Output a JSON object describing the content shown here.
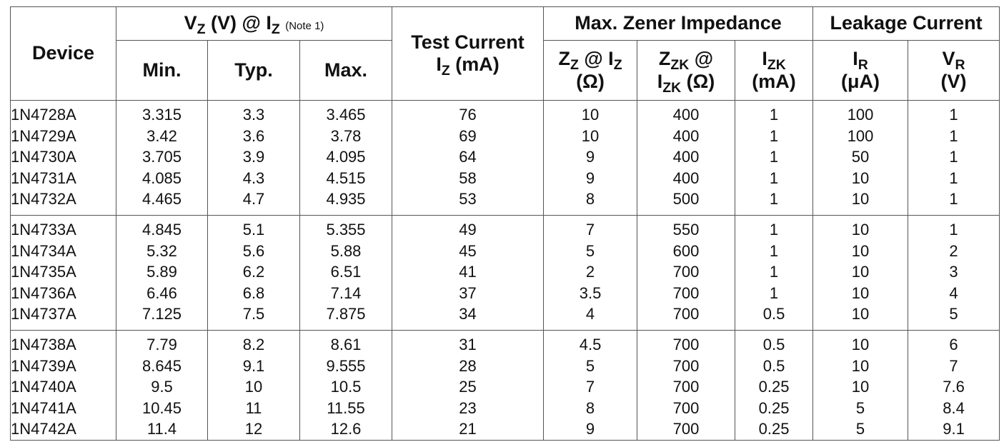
{
  "headers": {
    "device": "Device",
    "vz": {
      "main": "V",
      "sub": "Z",
      "unit": " (V) @ I",
      "sub2": "Z",
      "note": "(Note 1)"
    },
    "vz_min": "Min.",
    "vz_typ": "Typ.",
    "vz_max": "Max.",
    "test_current": {
      "line1": "Test Current",
      "i": "I",
      "sub": "Z",
      "unit": " (mA)"
    },
    "impedance": "Max. Zener Impedance",
    "zz": {
      "z": "Z",
      "sub": "Z",
      "at": " @ I",
      "sub2": "Z",
      "unit": "(Ω)"
    },
    "zzk": {
      "z": "Z",
      "sub": "ZK",
      "at": " @",
      "i": "I",
      "sub2": "ZK",
      "unit": " (Ω)"
    },
    "izk": {
      "i": "I",
      "sub": "ZK",
      "unit": "(mA)"
    },
    "leakage": "Leakage Current",
    "ir": {
      "i": "I",
      "sub": "R",
      "unit": "(μA)"
    },
    "vr": {
      "v": "V",
      "sub": "R",
      "unit": "(V)"
    }
  },
  "groups": [
    {
      "device": [
        "1N4728A",
        "1N4729A",
        "1N4730A",
        "1N4731A",
        "1N4732A"
      ],
      "min": [
        "3.315",
        "3.42",
        "3.705",
        "4.085",
        "4.465"
      ],
      "typ": [
        "3.3",
        "3.6",
        "3.9",
        "4.3",
        "4.7"
      ],
      "max": [
        "3.465",
        "3.78",
        "4.095",
        "4.515",
        "4.935"
      ],
      "iz": [
        "76",
        "69",
        "64",
        "58",
        "53"
      ],
      "zz": [
        "10",
        "10",
        "9",
        "9",
        "8"
      ],
      "zzk": [
        "400",
        "400",
        "400",
        "400",
        "500"
      ],
      "izk": [
        "1",
        "1",
        "1",
        "1",
        "1"
      ],
      "ir": [
        "100",
        "100",
        "50",
        "10",
        "10"
      ],
      "vr": [
        "1",
        "1",
        "1",
        "1",
        "1"
      ]
    },
    {
      "device": [
        "1N4733A",
        "1N4734A",
        "1N4735A",
        "1N4736A",
        "1N4737A"
      ],
      "min": [
        "4.845",
        "5.32",
        "5.89",
        "6.46",
        "7.125"
      ],
      "typ": [
        "5.1",
        "5.6",
        "6.2",
        "6.8",
        "7.5"
      ],
      "max": [
        "5.355",
        "5.88",
        "6.51",
        "7.14",
        "7.875"
      ],
      "iz": [
        "49",
        "45",
        "41",
        "37",
        "34"
      ],
      "zz": [
        "7",
        "5",
        "2",
        "3.5",
        "4"
      ],
      "zzk": [
        "550",
        "600",
        "700",
        "700",
        "700"
      ],
      "izk": [
        "1",
        "1",
        "1",
        "1",
        "0.5"
      ],
      "ir": [
        "10",
        "10",
        "10",
        "10",
        "10"
      ],
      "vr": [
        "1",
        "2",
        "3",
        "4",
        "5"
      ]
    },
    {
      "device": [
        "1N4738A",
        "1N4739A",
        "1N4740A",
        "1N4741A",
        "1N4742A"
      ],
      "min": [
        "7.79",
        "8.645",
        "9.5",
        "10.45",
        "11.4"
      ],
      "typ": [
        "8.2",
        "9.1",
        "10",
        "11",
        "12"
      ],
      "max": [
        "8.61",
        "9.555",
        "10.5",
        "11.55",
        "12.6"
      ],
      "iz": [
        "31",
        "28",
        "25",
        "23",
        "21"
      ],
      "zz": [
        "4.5",
        "5",
        "7",
        "8",
        "9"
      ],
      "zzk": [
        "700",
        "700",
        "700",
        "700",
        "700"
      ],
      "izk": [
        "0.5",
        "0.5",
        "0.25",
        "0.25",
        "0.25"
      ],
      "ir": [
        "10",
        "10",
        "10",
        "5",
        "5"
      ],
      "vr": [
        "6",
        "7",
        "7.6",
        "8.4",
        "9.1"
      ]
    }
  ]
}
